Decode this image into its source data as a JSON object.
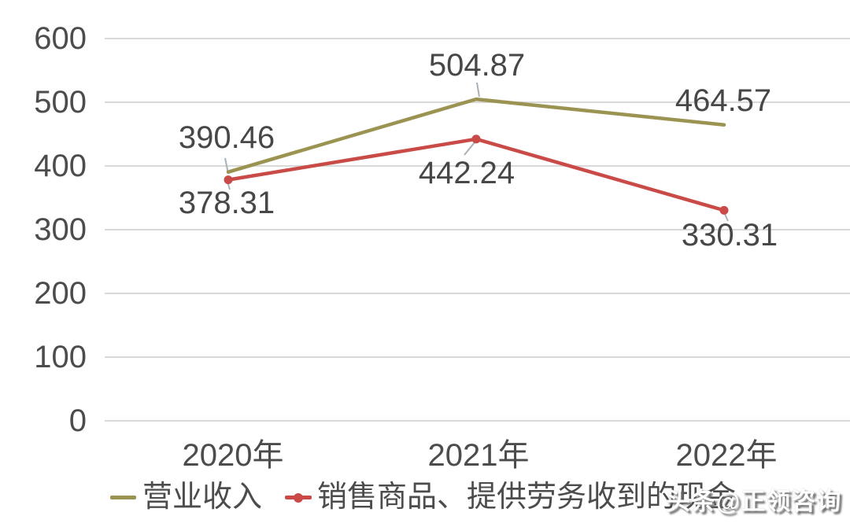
{
  "chart_data": {
    "type": "line",
    "title": "",
    "xlabel": "",
    "ylabel": "",
    "categories": [
      "2020年",
      "2021年",
      "2022年"
    ],
    "series": [
      {
        "name": "营业收入",
        "values": [
          390.46,
          504.87,
          464.57
        ],
        "color": "#9b9351",
        "marker": "none"
      },
      {
        "name": "销售商品、提供劳务收到的现金",
        "values": [
          378.31,
          442.24,
          330.31
        ],
        "color": "#c94a47",
        "marker": "dot"
      }
    ],
    "yticks": [
      "600",
      "500",
      "400",
      "300",
      "200",
      "100",
      "0"
    ],
    "ylim": [
      0,
      600
    ],
    "grid": "horizontal",
    "legend_position": "bottom"
  },
  "watermark": {
    "text": "头条@正领咨询"
  },
  "colors": {
    "series_revenue": "#9b9351",
    "series_cash": "#c94a47",
    "axis_text": "#4c4c4c",
    "gridline": "#d9d9d9",
    "leader_line": "#a8b0b8"
  }
}
